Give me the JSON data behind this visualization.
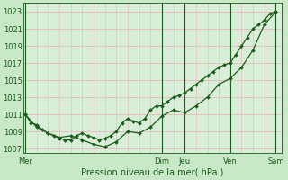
{
  "background_color": "#c8e8c8",
  "plot_bg_color": "#d8eed8",
  "grid_color_h": "#e8b8b8",
  "grid_color_v": "#e8b8b8",
  "line_color": "#1a5c1a",
  "xlabel": "Pression niveau de la mer( hPa )",
  "xlabel_fontsize": 7,
  "tick_fontsize": 6,
  "ylim": [
    1006.5,
    1024.0
  ],
  "yticks": [
    1007,
    1009,
    1011,
    1013,
    1015,
    1017,
    1019,
    1021,
    1023
  ],
  "day_labels": [
    "Mer",
    "Dim",
    "Jeu",
    "Ven",
    "Sam"
  ],
  "day_positions": [
    0,
    72,
    84,
    108,
    132
  ],
  "vline_positions": [
    0,
    72,
    84,
    108,
    132
  ],
  "xmin": -1,
  "xmax": 135,
  "line1_x": [
    0,
    3,
    6,
    9,
    12,
    15,
    18,
    21,
    24,
    27,
    30,
    33,
    36,
    39,
    42,
    45,
    48,
    51,
    54,
    57,
    60,
    63,
    66,
    69,
    72,
    75,
    78,
    81,
    84,
    87,
    90,
    93,
    96,
    99,
    102,
    105,
    108,
    111,
    114,
    117,
    120,
    123,
    126,
    129,
    132
  ],
  "line1_y": [
    1011.0,
    1010.0,
    1009.8,
    1009.2,
    1008.8,
    1008.5,
    1008.2,
    1008.0,
    1008.0,
    1008.5,
    1008.8,
    1008.5,
    1008.3,
    1008.0,
    1008.2,
    1008.5,
    1009.0,
    1010.0,
    1010.5,
    1010.2,
    1010.0,
    1010.5,
    1011.5,
    1012.0,
    1012.0,
    1012.5,
    1013.0,
    1013.2,
    1013.5,
    1014.0,
    1014.5,
    1015.0,
    1015.5,
    1016.0,
    1016.5,
    1016.8,
    1017.0,
    1018.0,
    1019.0,
    1020.0,
    1021.0,
    1021.5,
    1022.0,
    1022.8,
    1023.0
  ],
  "line2_x": [
    0,
    6,
    12,
    18,
    24,
    30,
    36,
    42,
    48,
    54,
    60,
    66,
    72,
    78,
    84,
    90,
    96,
    102,
    108,
    114,
    120,
    126,
    132
  ],
  "line2_y": [
    1011.0,
    1009.5,
    1008.8,
    1008.3,
    1008.5,
    1008.0,
    1007.5,
    1007.2,
    1007.8,
    1009.0,
    1008.8,
    1009.5,
    1010.8,
    1011.5,
    1011.2,
    1012.0,
    1013.0,
    1014.5,
    1015.2,
    1016.5,
    1018.5,
    1021.5,
    1023.0
  ],
  "line1_lw": 0.9,
  "line2_lw": 0.9,
  "marker_size": 2.0
}
